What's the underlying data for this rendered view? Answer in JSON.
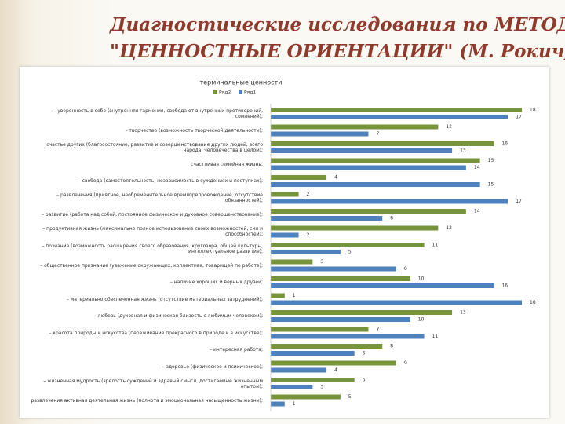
{
  "slide_title_lines": [
    "Диагностические исследования по МЕТОДИКЕ",
    "\"ЦЕННОСТНЫЕ ОРИЕНТАЦИИ\" (М. Рокич)"
  ],
  "chart_data": {
    "type": "hbar",
    "title": "терминальные ценности",
    "categories": [
      "– уверенность в себе (внутренняя гармония, свобода от внутренних противоречий, сомнений);",
      "– творчество (возможность творческой деятельности);",
      "счастье других (благосостояние, развитие и совершенствование других людей, всего народа, человечества в целом);",
      "счастливая семейная жизнь;",
      "– свобода (самостоятельность, независимость в суждениях и поступках);",
      "– развлечения (приятное, необременительное времяпрепровождение, отсутствие обязанностей);",
      "– развитие (работа над собой, постоянное физическое и духовное совершенствование);",
      "– продуктивная жизнь (максимально полное использование своих возможностей, сил и способностей);",
      "– познание (возможность расширения своего образования, кругозора, общей культуры, интеллектуальное развитие);",
      "– общественное признание (уважение окружающих, коллектива, товарищей по работе);",
      "– наличие хороших и верных друзей;",
      "– материально обеспеченная жизнь (отсутствие материальных затруднений);",
      "– любовь (духовная и физическая близость с любимым человеком);",
      "– красота природы и искусства (переживание прекрасного в природе и в искусстве);",
      "– интересная работа;",
      "– здоровье (физическое и психическое);",
      "– жизненная мудрость (зрелость суждений и здравый смысл, достигаемые жизненным опытом);",
      "развлечения активная деятельная жизнь (полнота и эмоциональная насыщенность жизни);"
    ],
    "series": [
      {
        "name": "Ряд2",
        "color": "#77933c",
        "values": [
          18,
          12,
          16,
          15,
          4,
          2,
          14,
          12,
          11,
          3,
          10,
          1,
          13,
          7,
          8,
          9,
          6,
          5
        ]
      },
      {
        "name": "Ряд1",
        "color": "#4f81bd",
        "values": [
          17,
          7,
          13,
          14,
          15,
          17,
          8,
          2,
          5,
          9,
          16,
          18,
          10,
          11,
          6,
          4,
          3,
          1
        ]
      }
    ],
    "legend": "top"
  }
}
